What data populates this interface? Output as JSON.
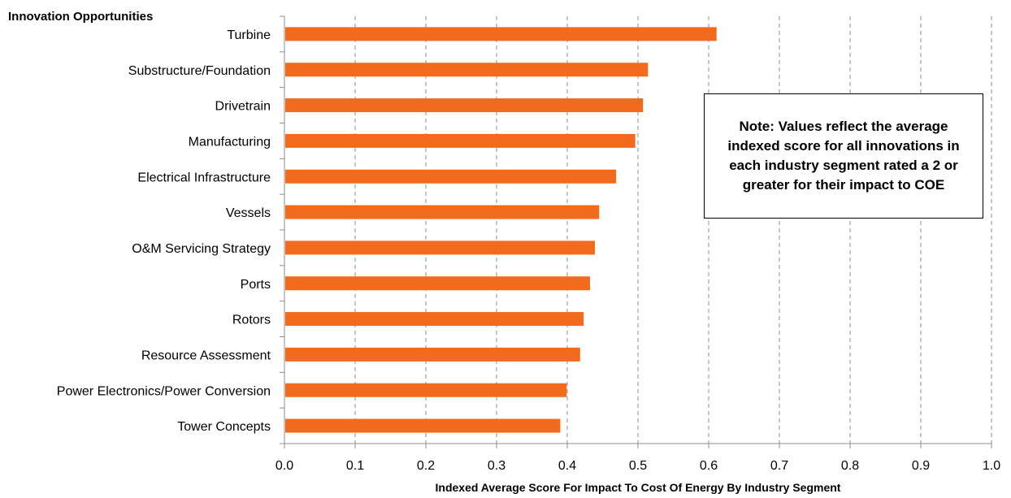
{
  "chart_data": {
    "type": "bar",
    "orientation": "horizontal",
    "title": "Innovation Opportunities",
    "xlabel": "Indexed Average Score For Impact To Cost Of Energy By Industry Segment",
    "ylabel": "",
    "categories": [
      "Turbine",
      "Substructure/Foundation",
      "Drivetrain",
      "Manufacturing",
      "Electrical Infrastructure",
      "Vessels",
      "O&M Servicing Strategy",
      "Ports",
      "Rotors",
      "Resource Assessment",
      "Power Electronics/Power Conversion",
      "Tower Concepts"
    ],
    "values": [
      0.61,
      0.513,
      0.506,
      0.495,
      0.468,
      0.444,
      0.438,
      0.431,
      0.422,
      0.417,
      0.398,
      0.389
    ],
    "xlim": [
      0,
      1.0
    ],
    "xticks": [
      "0.0",
      "0.1",
      "0.2",
      "0.3",
      "0.4",
      "0.5",
      "0.6",
      "0.7",
      "0.8",
      "0.9",
      "1.0"
    ],
    "grid": "vertical-dashed",
    "bar_color": "#F26A1B",
    "annotation": "Note: Values reflect the average indexed score for all innovations in each industry segment rated a 2 or greater for their impact to COE"
  }
}
